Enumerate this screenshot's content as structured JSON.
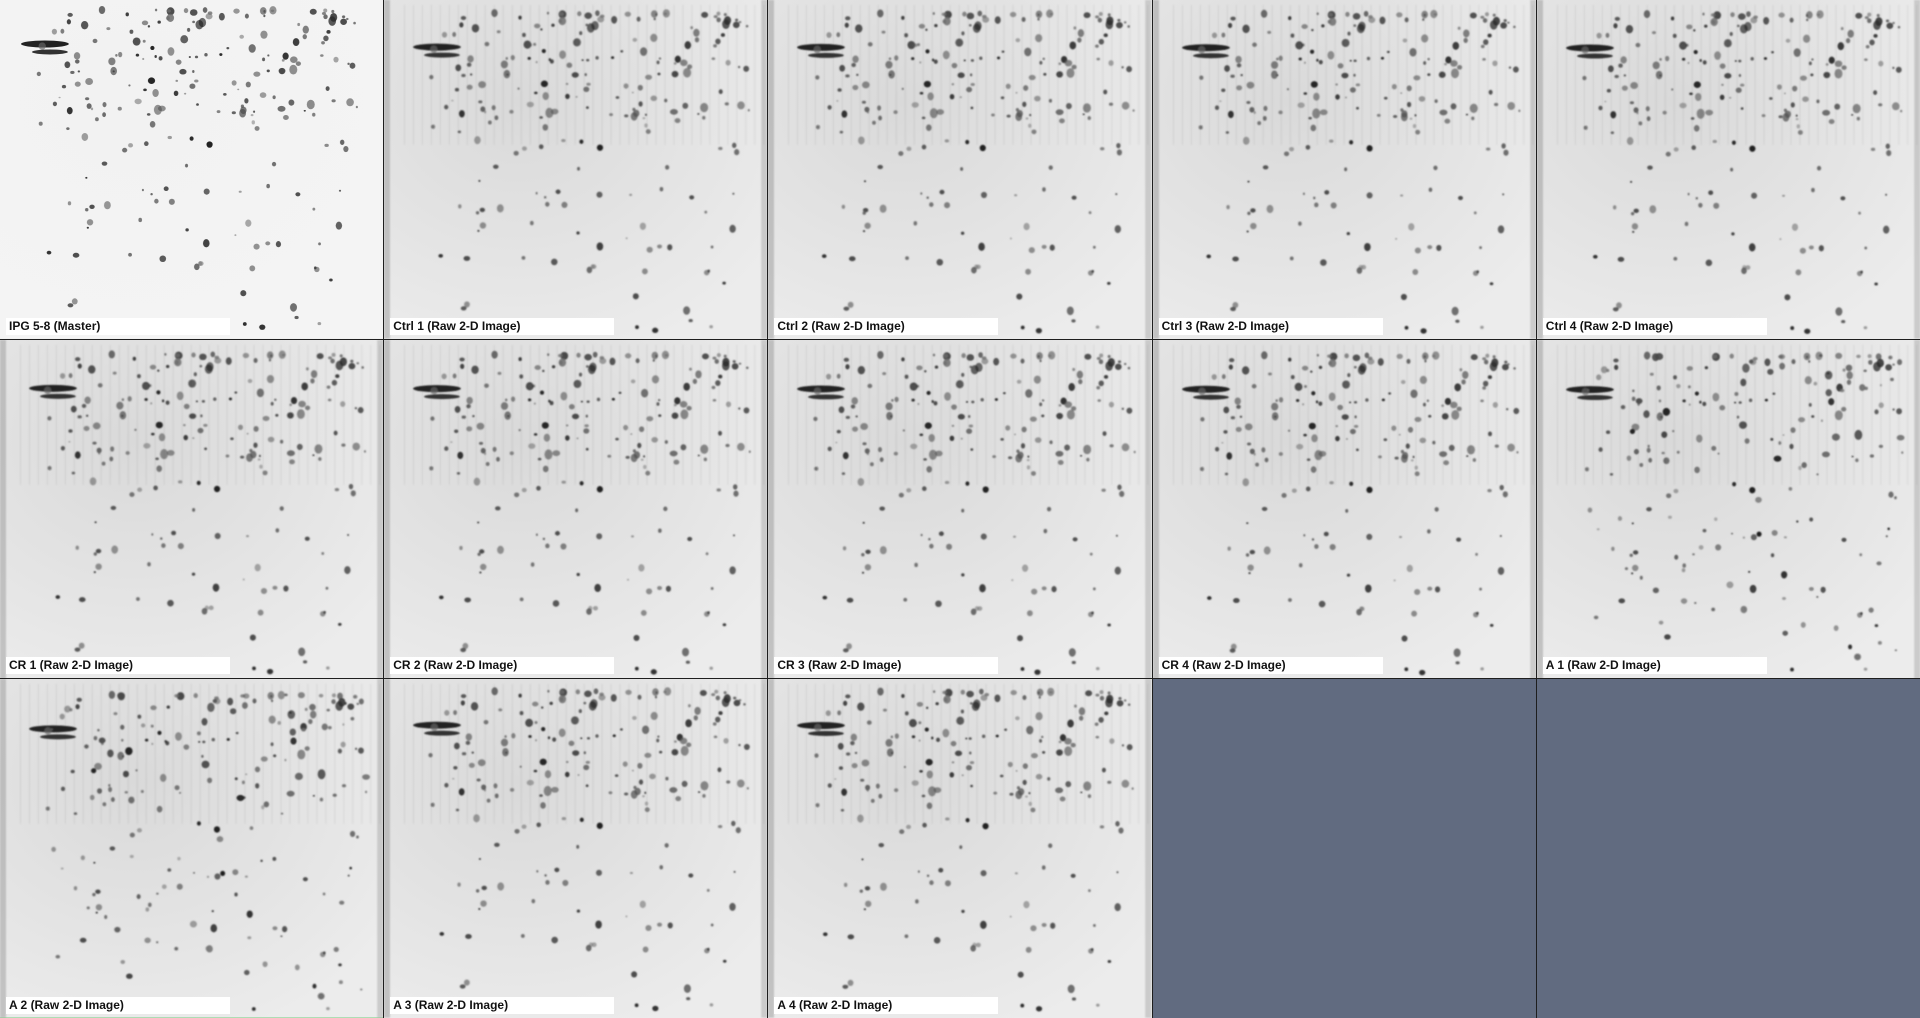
{
  "panels": [
    {
      "label": "IPG 5-8 (Master)"
    },
    {
      "label": "Ctrl 1 (Raw 2-D Image)"
    },
    {
      "label": "Ctrl 2 (Raw 2-D Image)"
    },
    {
      "label": "Ctrl 3 (Raw 2-D Image)"
    },
    {
      "label": "Ctrl 4 (Raw 2-D Image)"
    },
    {
      "label": "CR 1 (Raw 2-D Image)"
    },
    {
      "label": "CR 2 (Raw 2-D Image)"
    },
    {
      "label": "CR 3 (Raw 2-D Image)"
    },
    {
      "label": "CR 4 (Raw 2-D Image)"
    },
    {
      "label": "A 1 (Raw 2-D Image)"
    },
    {
      "label": "A 2 (Raw 2-D Image)"
    },
    {
      "label": "A 3 (Raw 2-D Image)"
    },
    {
      "label": "A 4 (Raw 2-D Image)"
    }
  ]
}
